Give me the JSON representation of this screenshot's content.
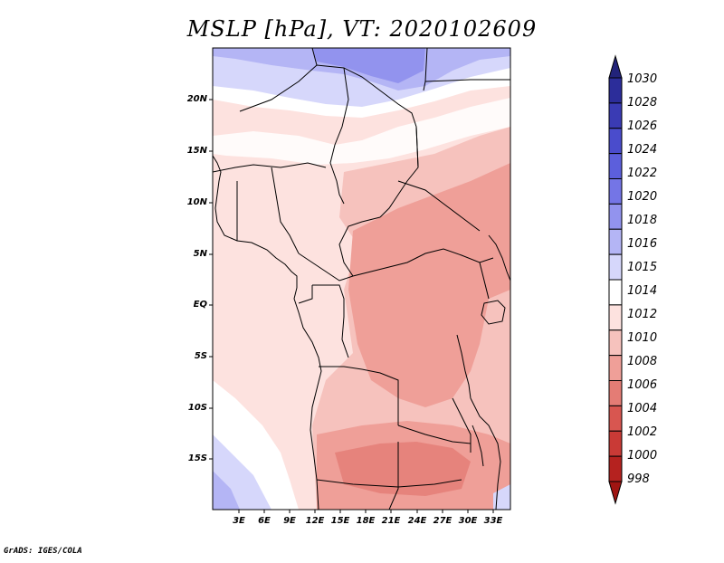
{
  "title": "MSLP [hPa], VT: 2020102609",
  "credit": "GrADS: IGES/COLA",
  "map": {
    "lat_ticks": [
      "20N",
      "15N",
      "10N",
      "5N",
      "EQ",
      "5S",
      "10S",
      "15S"
    ],
    "lon_ticks": [
      "3E",
      "6E",
      "9E",
      "12E",
      "15E",
      "18E",
      "21E",
      "24E",
      "27E",
      "30E",
      "33E"
    ]
  },
  "colorbar": {
    "levels": [
      "1030",
      "1028",
      "1026",
      "1024",
      "1022",
      "1020",
      "1018",
      "1016",
      "1015",
      "1014",
      "1012",
      "1010",
      "1008",
      "1006",
      "1004",
      "1002",
      "1000",
      "998"
    ],
    "colors": [
      "#22237a",
      "#2c2d9a",
      "#3a3bb4",
      "#4a4ccc",
      "#5c5fdc",
      "#7475e6",
      "#9293ee",
      "#b4b5f5",
      "#d6d7fb",
      "#ffffff",
      "#fde2df",
      "#f6c2bd",
      "#ef9f98",
      "#e47c75",
      "#d85650",
      "#c93a36",
      "#b5221f",
      "#a01512"
    ]
  }
}
